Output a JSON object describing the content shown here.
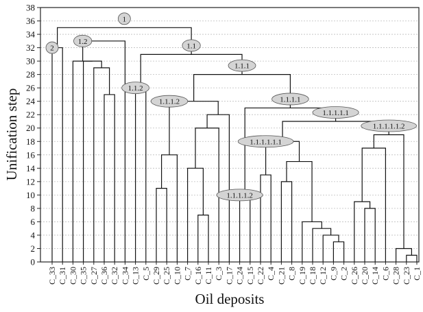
{
  "chart_data": {
    "type": "dendrogram",
    "xlabel": "Oil deposits",
    "ylabel": "Unification step",
    "ylim": [
      0,
      38
    ],
    "yticks": [
      0,
      2,
      4,
      6,
      8,
      10,
      12,
      14,
      16,
      18,
      20,
      22,
      24,
      26,
      28,
      30,
      32,
      34,
      36,
      38
    ],
    "grid": true,
    "leaves": [
      "C_33",
      "C_31",
      "C_30",
      "C_35",
      "C_27",
      "C_36",
      "C_32",
      "C_34",
      "C_13",
      "C_5",
      "C_29",
      "C_25",
      "C_10",
      "C_7",
      "C_16",
      "C_11",
      "C_3",
      "C_17",
      "C_24",
      "C_15",
      "C_22",
      "C_4",
      "C_21",
      "C_8",
      "C_19",
      "C_18",
      "C_12",
      "C_9",
      "C_2",
      "C_26",
      "C_20",
      "C_14",
      "C_6",
      "C_28",
      "C_23",
      "C_1"
    ],
    "merges": [
      {
        "children": [
          "L:C_33",
          "L:C_31"
        ],
        "height": 32
      },
      {
        "children": [
          "L:C_36",
          "L:C_32"
        ],
        "height": 25
      },
      {
        "children": [
          "L:C_27",
          "M:1"
        ],
        "height": 29
      },
      {
        "children": [
          "L:C_35",
          "M:2"
        ],
        "height": 30
      },
      {
        "children": [
          "L:C_30",
          "M:3"
        ],
        "height": 30
      },
      {
        "children": [
          "M:4",
          "L:C_34"
        ],
        "height": 33
      },
      {
        "children": [
          "L:C_13",
          "L:C_5"
        ],
        "height": 26
      },
      {
        "children": [
          "L:C_29",
          "L:C_25"
        ],
        "height": 11
      },
      {
        "children": [
          "M:7",
          "L:C_10"
        ],
        "height": 16
      },
      {
        "children": [
          "L:C_16",
          "L:C_11"
        ],
        "height": 7
      },
      {
        "children": [
          "L:C_7",
          "M:9"
        ],
        "height": 14
      },
      {
        "children": [
          "M:10",
          "L:C_3"
        ],
        "height": 20
      },
      {
        "children": [
          "M:11",
          "L:C_17"
        ],
        "height": 22
      },
      {
        "children": [
          "M:8",
          "M:12"
        ],
        "height": 24
      },
      {
        "children": [
          "L:C_24",
          "L:C_15"
        ],
        "height": 10
      },
      {
        "children": [
          "L:C_22",
          "L:C_4"
        ],
        "height": 13
      },
      {
        "children": [
          "L:C_21",
          "L:C_8"
        ],
        "height": 12
      },
      {
        "children": [
          "L:C_9",
          "L:C_2"
        ],
        "height": 3
      },
      {
        "children": [
          "L:C_12",
          "M:17"
        ],
        "height": 4
      },
      {
        "children": [
          "L:C_18",
          "M:18"
        ],
        "height": 5
      },
      {
        "children": [
          "L:C_19",
          "M:19"
        ],
        "height": 6
      },
      {
        "children": [
          "M:16",
          "M:20"
        ],
        "height": 15
      },
      {
        "children": [
          "M:15",
          "M:21"
        ],
        "height": 18
      },
      {
        "children": [
          "L:C_20",
          "L:C_14"
        ],
        "height": 8
      },
      {
        "children": [
          "L:C_26",
          "M:23"
        ],
        "height": 9
      },
      {
        "children": [
          "L:C_23",
          "L:C_1"
        ],
        "height": 1
      },
      {
        "children": [
          "L:C_28",
          "M:25"
        ],
        "height": 2
      },
      {
        "children": [
          "M:24",
          "L:C_6"
        ],
        "height": 17
      },
      {
        "children": [
          "M:27",
          "M:26"
        ],
        "height": 19
      },
      {
        "children": [
          "M:22",
          "M:28"
        ],
        "height": 21
      },
      {
        "children": [
          "M:14",
          "M:29"
        ],
        "height": 23
      },
      {
        "children": [
          "M:13",
          "M:30"
        ],
        "height": 28
      },
      {
        "children": [
          "M:6",
          "M:31"
        ],
        "height": 31
      },
      {
        "children": [
          "M:32",
          "L:C_33+C_31"
        ],
        "height": 35
      }
    ],
    "node_labels": [
      {
        "label": "2",
        "merge": 0,
        "side": "left"
      },
      {
        "label": "1",
        "merge": 33,
        "side": "top"
      },
      {
        "label": "1.2",
        "merge": 5,
        "side": "left"
      },
      {
        "label": "1.1",
        "merge": 32,
        "side": "top"
      },
      {
        "label": "1.1.2",
        "merge": 6,
        "side": "left"
      },
      {
        "label": "1.1.1",
        "merge": 31,
        "side": "top"
      },
      {
        "label": "1.1.1.2",
        "merge": 13,
        "side": "left"
      },
      {
        "label": "1.1.1.1",
        "merge": 30,
        "side": "top"
      },
      {
        "label": "1.1.1.1.2",
        "merge": 14,
        "side": "left"
      },
      {
        "label": "1.1.1.1.1",
        "merge": 29,
        "side": "top"
      },
      {
        "label": "1.1.1.1.1.1",
        "merge": 22,
        "side": "left"
      },
      {
        "label": "1.1.1.1.1.2",
        "merge": 28,
        "side": "top"
      }
    ]
  }
}
